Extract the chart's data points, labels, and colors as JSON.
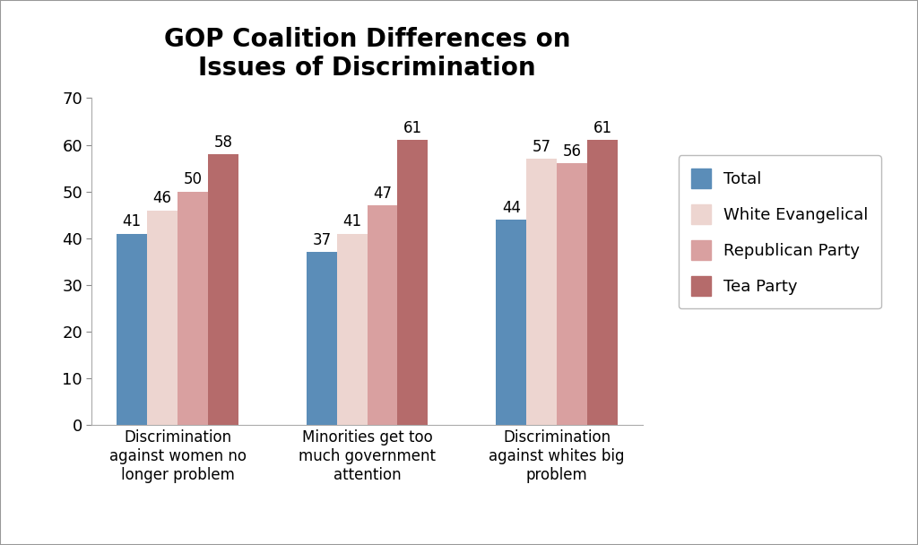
{
  "title": "GOP Coalition Differences on\nIssues of Discrimination",
  "categories": [
    "Discrimination\nagainst women no\nlonger problem",
    "Minorities get too\nmuch government\nattention",
    "Discrimination\nagainst whites big\nproblem"
  ],
  "series": {
    "Total": [
      41,
      37,
      44
    ],
    "White Evangelical": [
      46,
      41,
      57
    ],
    "Republican Party": [
      50,
      47,
      56
    ],
    "Tea Party": [
      58,
      61,
      61
    ]
  },
  "colors": {
    "Total": "#5B8DB8",
    "White Evangelical": "#EDD5D0",
    "Republican Party": "#D9A0A0",
    "Tea Party": "#B56B6B"
  },
  "ylim": [
    0,
    70
  ],
  "yticks": [
    0,
    10,
    20,
    30,
    40,
    50,
    60,
    70
  ],
  "bar_width": 0.16,
  "legend_labels": [
    "Total",
    "White Evangelical",
    "Republican Party",
    "Tea Party"
  ],
  "title_fontsize": 20,
  "tick_fontsize": 13,
  "label_fontsize": 12,
  "value_fontsize": 12,
  "background_color": "#FFFFFF",
  "border_color": "#AAAAAA"
}
